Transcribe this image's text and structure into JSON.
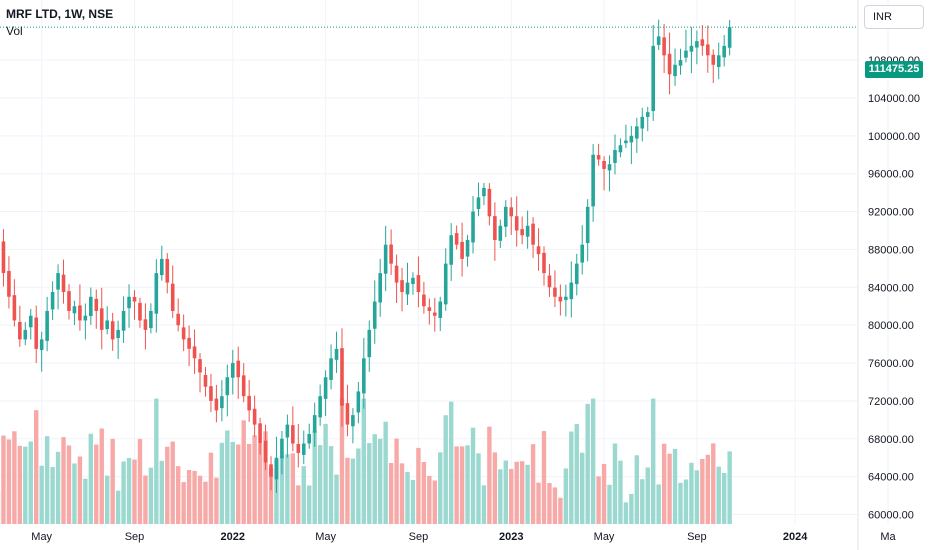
{
  "header": {
    "title": "MRF LTD, 1W, NSE",
    "volume_label": "Vol"
  },
  "currency": "INR",
  "last_price_label": "111475.25",
  "colors": {
    "up": "#26a69a",
    "down": "#ef5350",
    "up_volume": "#9ad8d0",
    "down_volume": "#f7a9a7",
    "last_price": "#089981",
    "grid": "#f0f3fa",
    "axis_text": "#131722"
  },
  "chart_data": {
    "type": "candlestick",
    "y_ticks": [
      "60000.00",
      "64000.00",
      "68000.00",
      "72000.00",
      "76000.00",
      "80000.00",
      "84000.00",
      "88000.00",
      "92000.00",
      "96000.00",
      "100000.00",
      "104000.00",
      "108000.00"
    ],
    "y_tick_values": [
      60000,
      64000,
      68000,
      72000,
      76000,
      80000,
      84000,
      88000,
      92000,
      96000,
      100000,
      104000,
      108000
    ],
    "ylim": [
      59000,
      113500
    ],
    "x_ticks": [
      {
        "label": "May",
        "bold": false
      },
      {
        "label": "Sep",
        "bold": false
      },
      {
        "label": "2022",
        "bold": true
      },
      {
        "label": "May",
        "bold": false
      },
      {
        "label": "Sep",
        "bold": false
      },
      {
        "label": "2023",
        "bold": true
      },
      {
        "label": "May",
        "bold": false
      },
      {
        "label": "Sep",
        "bold": false
      },
      {
        "label": "2024",
        "bold": true
      },
      {
        "label": "Ma",
        "bold": false
      }
    ],
    "x_tick_weeks": [
      8,
      25,
      43,
      60,
      77,
      94,
      111,
      128,
      146,
      163
    ],
    "last_price": 111475.25,
    "volume_max": 100,
    "weekly_close": [
      89000,
      85500,
      83000,
      80500,
      78500,
      79500,
      81000,
      77500,
      78500,
      81500,
      83500,
      85500,
      83500,
      81500,
      82000,
      80500,
      81000,
      83000,
      81500,
      79500,
      80500,
      78500,
      79500,
      81500,
      83000,
      82500,
      80500,
      79500,
      81500,
      85500,
      87000,
      84500,
      81500,
      80000,
      78500,
      77500,
      76500,
      75000,
      73500,
      72000,
      71000,
      72500,
      74500,
      76000,
      74500,
      72500,
      71000,
      69500,
      67500,
      65500,
      64000,
      66000,
      68000,
      69500,
      67500,
      66500,
      67500,
      68500,
      70500,
      72500,
      74500,
      76500,
      77500,
      71500,
      69500,
      70500,
      73000,
      76500,
      79500,
      82500,
      85500,
      88500,
      86500,
      84500,
      83500,
      84500,
      85000,
      83500,
      82000,
      81500,
      81000,
      82500,
      86500,
      89500,
      88500,
      87000,
      89000,
      92000,
      93500,
      94500,
      91500,
      89000,
      90500,
      92500,
      91500,
      90000,
      89500,
      90500,
      88500,
      87500,
      85500,
      84000,
      83000,
      82500,
      83000,
      84500,
      86500,
      88500,
      92500,
      98000,
      97500,
      96500,
      97000,
      98500,
      99000,
      99500,
      100000,
      101000,
      102000,
      102500,
      109500,
      110500,
      108500,
      106500,
      107500,
      108000,
      109000,
      109500,
      110000,
      109500,
      108500,
      107500,
      108500,
      109500,
      111475.25
    ]
  }
}
